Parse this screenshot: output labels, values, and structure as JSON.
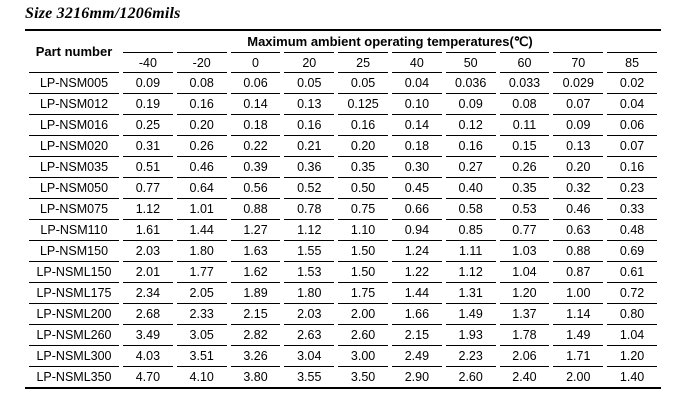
{
  "page": {
    "title": "Size 3216mm/1206mils"
  },
  "table": {
    "part_number_header": "Part number",
    "temps_group_header": "Maximum ambient operating temperatures(℃)",
    "temp_columns": [
      "-40",
      "-20",
      "0",
      "20",
      "25",
      "40",
      "50",
      "60",
      "70",
      "85"
    ],
    "rows": [
      {
        "part": "LP-NSM005",
        "values": [
          "0.09",
          "0.08",
          "0.06",
          "0.05",
          "0.05",
          "0.04",
          "0.036",
          "0.033",
          "0.029",
          "0.02"
        ]
      },
      {
        "part": "LP-NSM012",
        "values": [
          "0.19",
          "0.16",
          "0.14",
          "0.13",
          "0.125",
          "0.10",
          "0.09",
          "0.08",
          "0.07",
          "0.04"
        ]
      },
      {
        "part": "LP-NSM016",
        "values": [
          "0.25",
          "0.20",
          "0.18",
          "0.16",
          "0.16",
          "0.14",
          "0.12",
          "0.11",
          "0.09",
          "0.06"
        ]
      },
      {
        "part": "LP-NSM020",
        "values": [
          "0.31",
          "0.26",
          "0.22",
          "0.21",
          "0.20",
          "0.18",
          "0.16",
          "0.15",
          "0.13",
          "0.07"
        ]
      },
      {
        "part": "LP-NSM035",
        "values": [
          "0.51",
          "0.46",
          "0.39",
          "0.36",
          "0.35",
          "0.30",
          "0.27",
          "0.26",
          "0.20",
          "0.16"
        ]
      },
      {
        "part": "LP-NSM050",
        "values": [
          "0.77",
          "0.64",
          "0.56",
          "0.52",
          "0.50",
          "0.45",
          "0.40",
          "0.35",
          "0.32",
          "0.23"
        ]
      },
      {
        "part": "LP-NSM075",
        "values": [
          "1.12",
          "1.01",
          "0.88",
          "0.78",
          "0.75",
          "0.66",
          "0.58",
          "0.53",
          "0.46",
          "0.33"
        ]
      },
      {
        "part": "LP-NSM110",
        "values": [
          "1.61",
          "1.44",
          "1.27",
          "1.12",
          "1.10",
          "0.94",
          "0.85",
          "0.77",
          "0.63",
          "0.48"
        ]
      },
      {
        "part": "LP-NSM150",
        "values": [
          "2.03",
          "1.80",
          "1.63",
          "1.55",
          "1.50",
          "1.24",
          "1.11",
          "1.03",
          "0.88",
          "0.69"
        ]
      },
      {
        "part": "LP-NSML150",
        "values": [
          "2.01",
          "1.77",
          "1.62",
          "1.53",
          "1.50",
          "1.22",
          "1.12",
          "1.04",
          "0.87",
          "0.61"
        ]
      },
      {
        "part": "LP-NSML175",
        "values": [
          "2.34",
          "2.05",
          "1.89",
          "1.80",
          "1.75",
          "1.44",
          "1.31",
          "1.20",
          "1.00",
          "0.72"
        ]
      },
      {
        "part": "LP-NSML200",
        "values": [
          "2.68",
          "2.33",
          "2.15",
          "2.03",
          "2.00",
          "1.66",
          "1.49",
          "1.37",
          "1.14",
          "0.80"
        ]
      },
      {
        "part": "LP-NSML260",
        "values": [
          "3.49",
          "3.05",
          "2.82",
          "2.63",
          "2.60",
          "2.15",
          "1.93",
          "1.78",
          "1.49",
          "1.04"
        ]
      },
      {
        "part": "LP-NSML300",
        "values": [
          "4.03",
          "3.51",
          "3.26",
          "3.04",
          "3.00",
          "2.49",
          "2.23",
          "2.06",
          "1.71",
          "1.20"
        ]
      },
      {
        "part": "LP-NSML350",
        "values": [
          "4.70",
          "4.10",
          "3.80",
          "3.55",
          "3.50",
          "2.90",
          "2.60",
          "2.40",
          "2.00",
          "1.40"
        ]
      }
    ]
  }
}
